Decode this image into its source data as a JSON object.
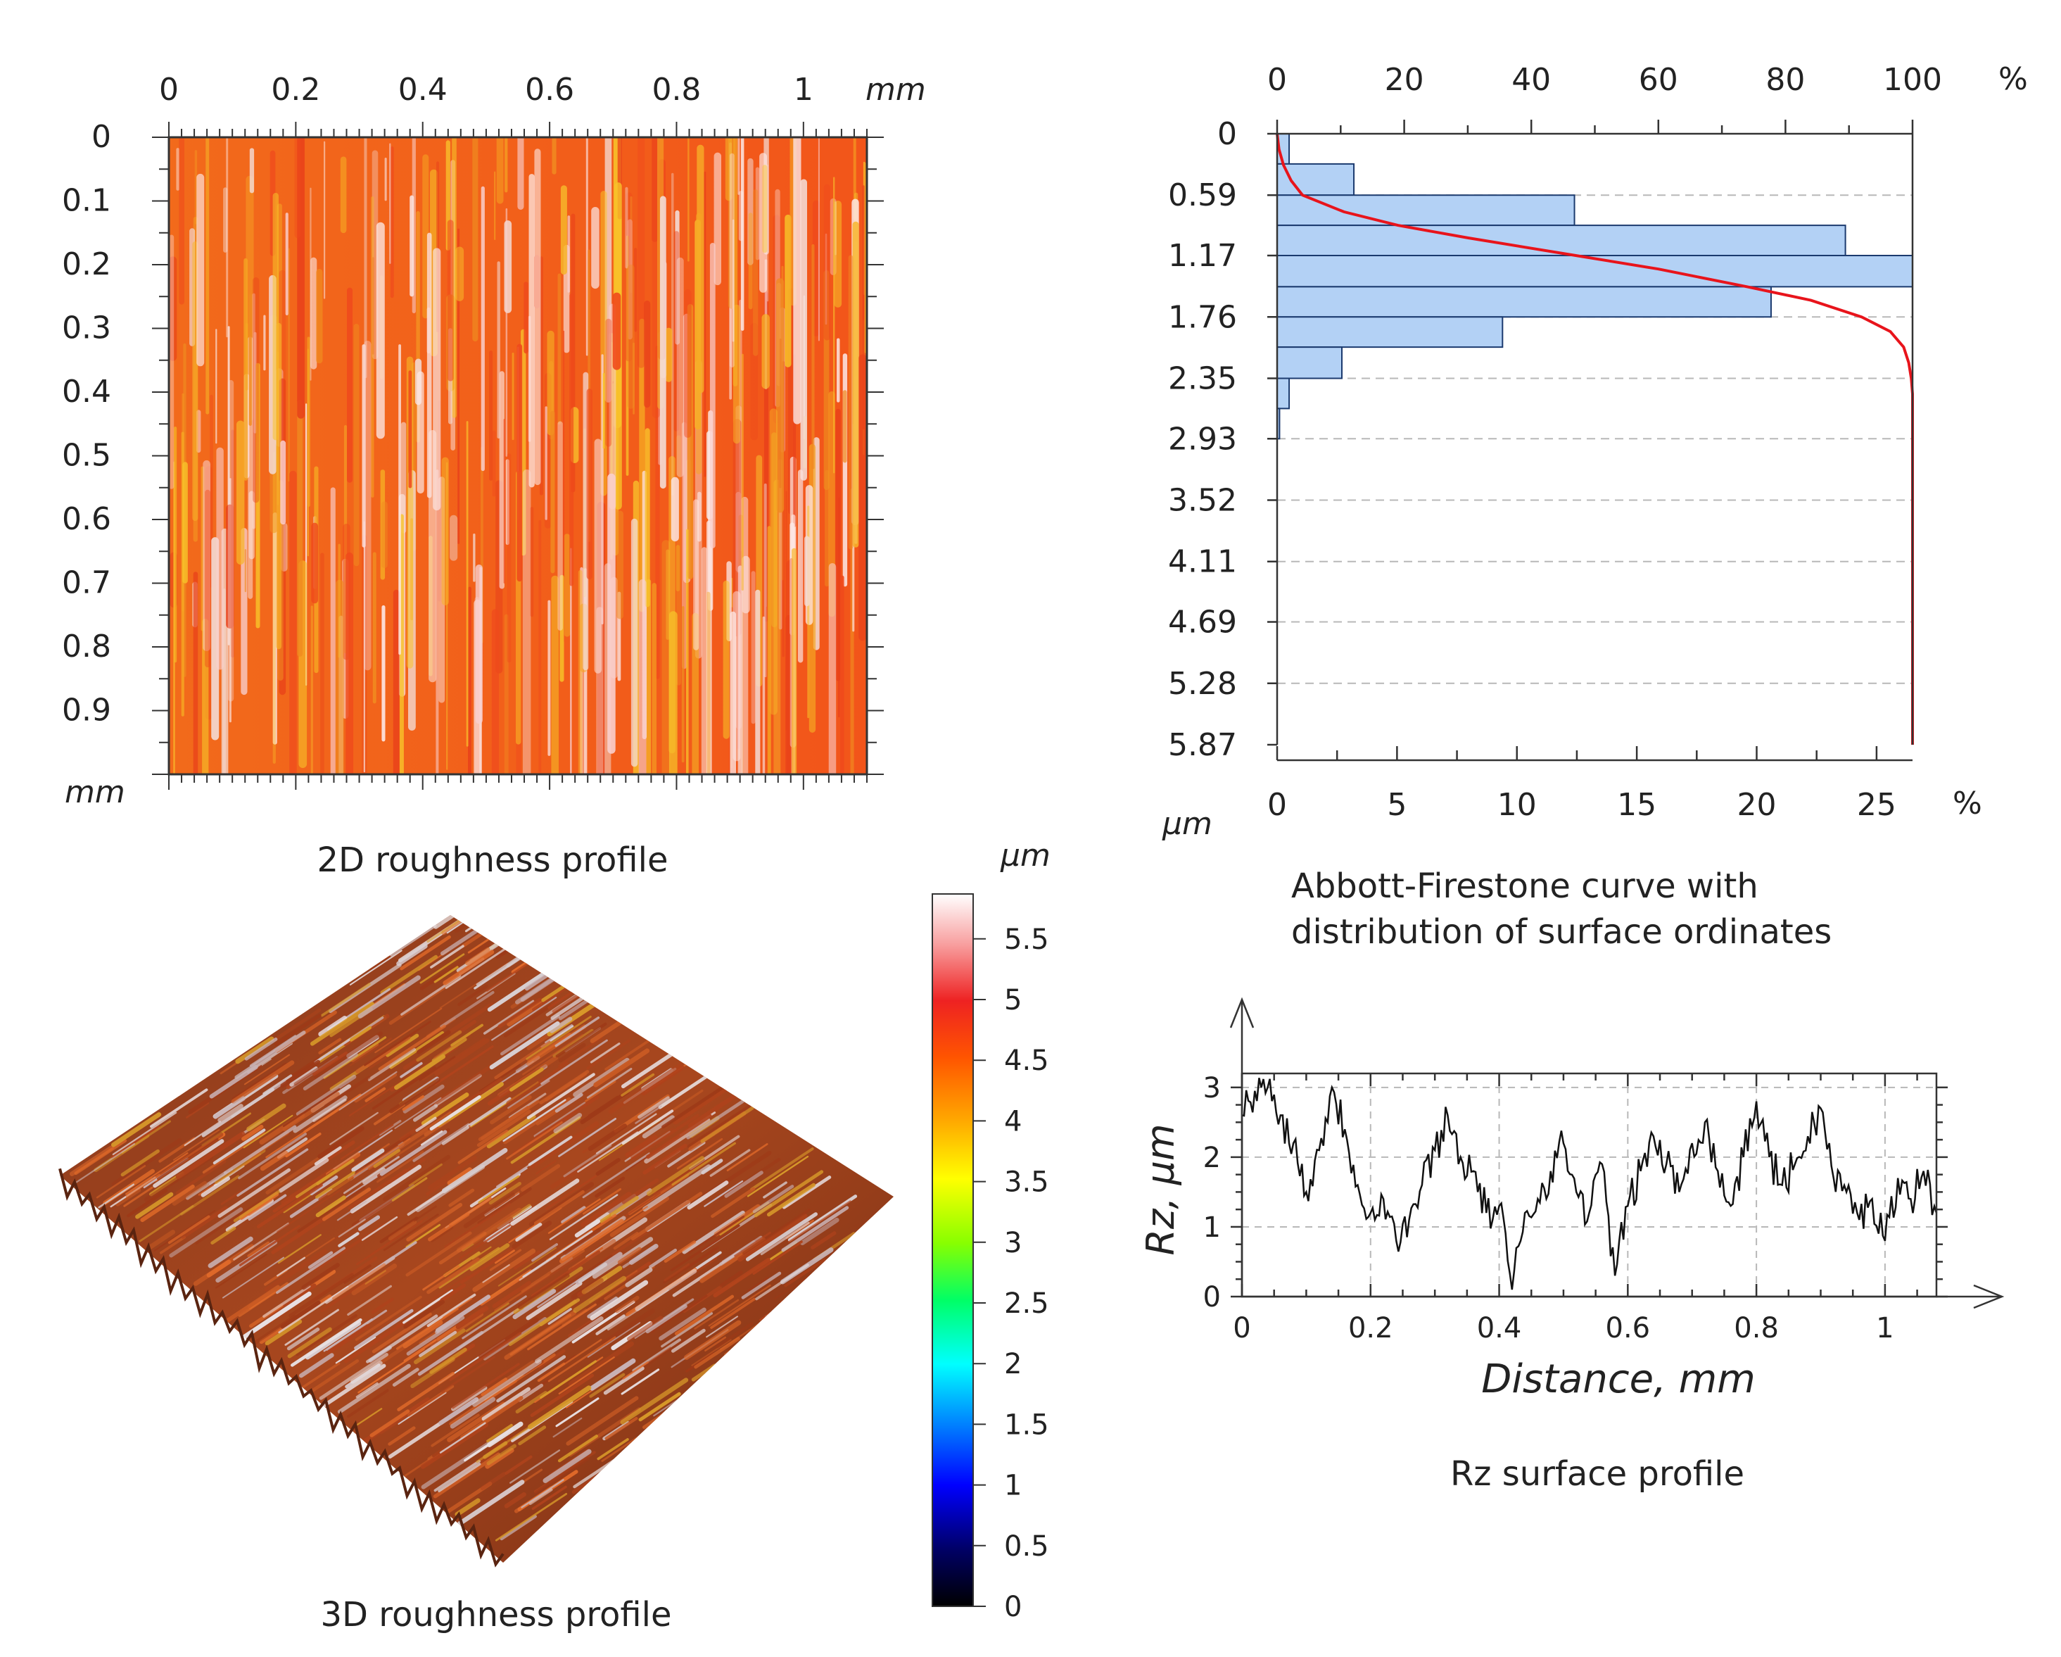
{
  "figure": {
    "panel_2d": {
      "caption": "2D roughness profile",
      "x_unit": "mm",
      "y_unit": "mm",
      "x_ticks": [
        "0",
        "0.2",
        "0.4",
        "0.6",
        "0.8",
        "1"
      ],
      "y_ticks": [
        "0",
        "0.1",
        "0.2",
        "0.3",
        "0.4",
        "0.5",
        "0.6",
        "0.7",
        "0.8",
        "0.9"
      ]
    },
    "panel_3d": {
      "caption": "3D roughness profile"
    },
    "colorbar": {
      "unit": "µm",
      "ticks": [
        "0",
        "0.5",
        "1",
        "1.5",
        "2",
        "2.5",
        "3",
        "3.5",
        "4",
        "4.5",
        "5",
        "5.5"
      ],
      "range": [
        0,
        5.87
      ]
    },
    "abbott": {
      "caption_line1": "Abbott-Firestone curve with",
      "caption_line2": "distribution of surface ordinates",
      "top_unit": "%",
      "bottom_unit": "%",
      "y_unit": "µm",
      "top_ticks": [
        "0",
        "20",
        "40",
        "60",
        "80",
        "100"
      ],
      "bottom_ticks": [
        "0",
        "5",
        "10",
        "15",
        "20",
        "25"
      ],
      "y_ticks": [
        "0",
        "0.59",
        "1.17",
        "1.76",
        "2.35",
        "2.93",
        "3.52",
        "4.11",
        "4.69",
        "5.28",
        "5.87"
      ]
    },
    "rz": {
      "caption": "Rz surface profile",
      "xlabel": "Distance, mm",
      "ylabel": "Rz, µm",
      "x_ticks": [
        "0",
        "0.2",
        "0.4",
        "0.6",
        "0.8",
        "1"
      ],
      "y_ticks": [
        "0",
        "1",
        "2",
        "3"
      ]
    }
  },
  "colors": {
    "histogram_fill": "#b3d1f5",
    "histogram_stroke": "#1b3a6e",
    "abbott_curve": "#e8141b",
    "grid_dash": "#b8b8b8",
    "profile_line": "#111111"
  },
  "chart_data": [
    {
      "type": "heatmap",
      "title": "2D roughness profile",
      "xlabel": "mm",
      "ylabel": "mm",
      "xlim": [
        0,
        1.1
      ],
      "ylim": [
        0,
        1.0
      ],
      "zlim": [
        0,
        5.87
      ],
      "z_unit": "µm",
      "description_values": "height map dominated by 3.5–5.5 µm, vertical streaks"
    },
    {
      "type": "bar",
      "title": "Abbott-Firestone curve with distribution of surface ordinates",
      "orientation": "horizontal",
      "bin_edges": [
        0,
        0.29,
        0.59,
        0.88,
        1.17,
        1.47,
        1.76,
        2.05,
        2.35,
        2.64,
        2.93
      ],
      "values": [
        0.5,
        3.2,
        12.4,
        23.7,
        26.5,
        20.6,
        9.4,
        2.7,
        0.5,
        0.1
      ],
      "xlabel": "%",
      "ylabel": "µm",
      "xlim": [
        0,
        26.5
      ],
      "ylim": [
        5.87,
        0
      ],
      "curve": {
        "name": "Abbott-Firestone curve",
        "depth": [
          0,
          0.15,
          0.3,
          0.45,
          0.59,
          0.75,
          0.88,
          1.0,
          1.17,
          1.3,
          1.47,
          1.6,
          1.76,
          1.9,
          2.05,
          2.2,
          2.35,
          2.5,
          2.93,
          5.87
        ],
        "percent": [
          0,
          0.3,
          1.0,
          2.2,
          4.0,
          10.5,
          19.0,
          30.0,
          47.0,
          60.0,
          74.0,
          84.0,
          92.0,
          96.5,
          98.6,
          99.4,
          99.8,
          100,
          100,
          100
        ]
      },
      "top_axis": {
        "label": "%",
        "range": [
          0,
          100
        ]
      }
    },
    {
      "type": "line",
      "title": "Rz surface profile",
      "xlabel": "Distance, mm",
      "ylabel": "Rz, µm",
      "xlim": [
        0,
        1.08
      ],
      "ylim": [
        0,
        3.2
      ],
      "x": [
        0,
        0.02,
        0.04,
        0.06,
        0.08,
        0.1,
        0.12,
        0.14,
        0.16,
        0.18,
        0.2,
        0.22,
        0.24,
        0.26,
        0.28,
        0.3,
        0.32,
        0.34,
        0.36,
        0.38,
        0.4,
        0.42,
        0.44,
        0.46,
        0.48,
        0.5,
        0.52,
        0.54,
        0.56,
        0.58,
        0.6,
        0.62,
        0.64,
        0.66,
        0.68,
        0.7,
        0.72,
        0.74,
        0.76,
        0.78,
        0.8,
        0.82,
        0.84,
        0.86,
        0.88,
        0.9,
        0.92,
        0.94,
        0.96,
        0.98,
        1.0,
        1.02,
        1.04,
        1.06,
        1.08
      ],
      "y": [
        2.6,
        2.95,
        3.0,
        2.6,
        2.2,
        1.5,
        2.1,
        3.0,
        2.4,
        1.6,
        1.2,
        1.4,
        0.8,
        1.1,
        1.6,
        2.1,
        2.6,
        2.0,
        1.8,
        1.2,
        1.3,
        0.1,
        1.2,
        1.4,
        1.8,
        2.2,
        1.5,
        1.2,
        1.9,
        0.3,
        1.3,
        1.8,
        2.3,
        1.9,
        1.5,
        2.2,
        2.5,
        1.8,
        1.3,
        2.0,
        2.8,
        2.0,
        1.6,
        1.9,
        2.3,
        2.7,
        1.7,
        1.5,
        1.1,
        1.4,
        0.8,
        1.7,
        1.4,
        1.8,
        1.2
      ]
    },
    {
      "type": "other",
      "title": "3D roughness profile",
      "colorbar": {
        "label": "µm",
        "range": [
          0,
          5.87
        ],
        "ticks": [
          0,
          0.5,
          1,
          1.5,
          2,
          2.5,
          3,
          3.5,
          4,
          4.5,
          5,
          5.5
        ]
      }
    }
  ]
}
